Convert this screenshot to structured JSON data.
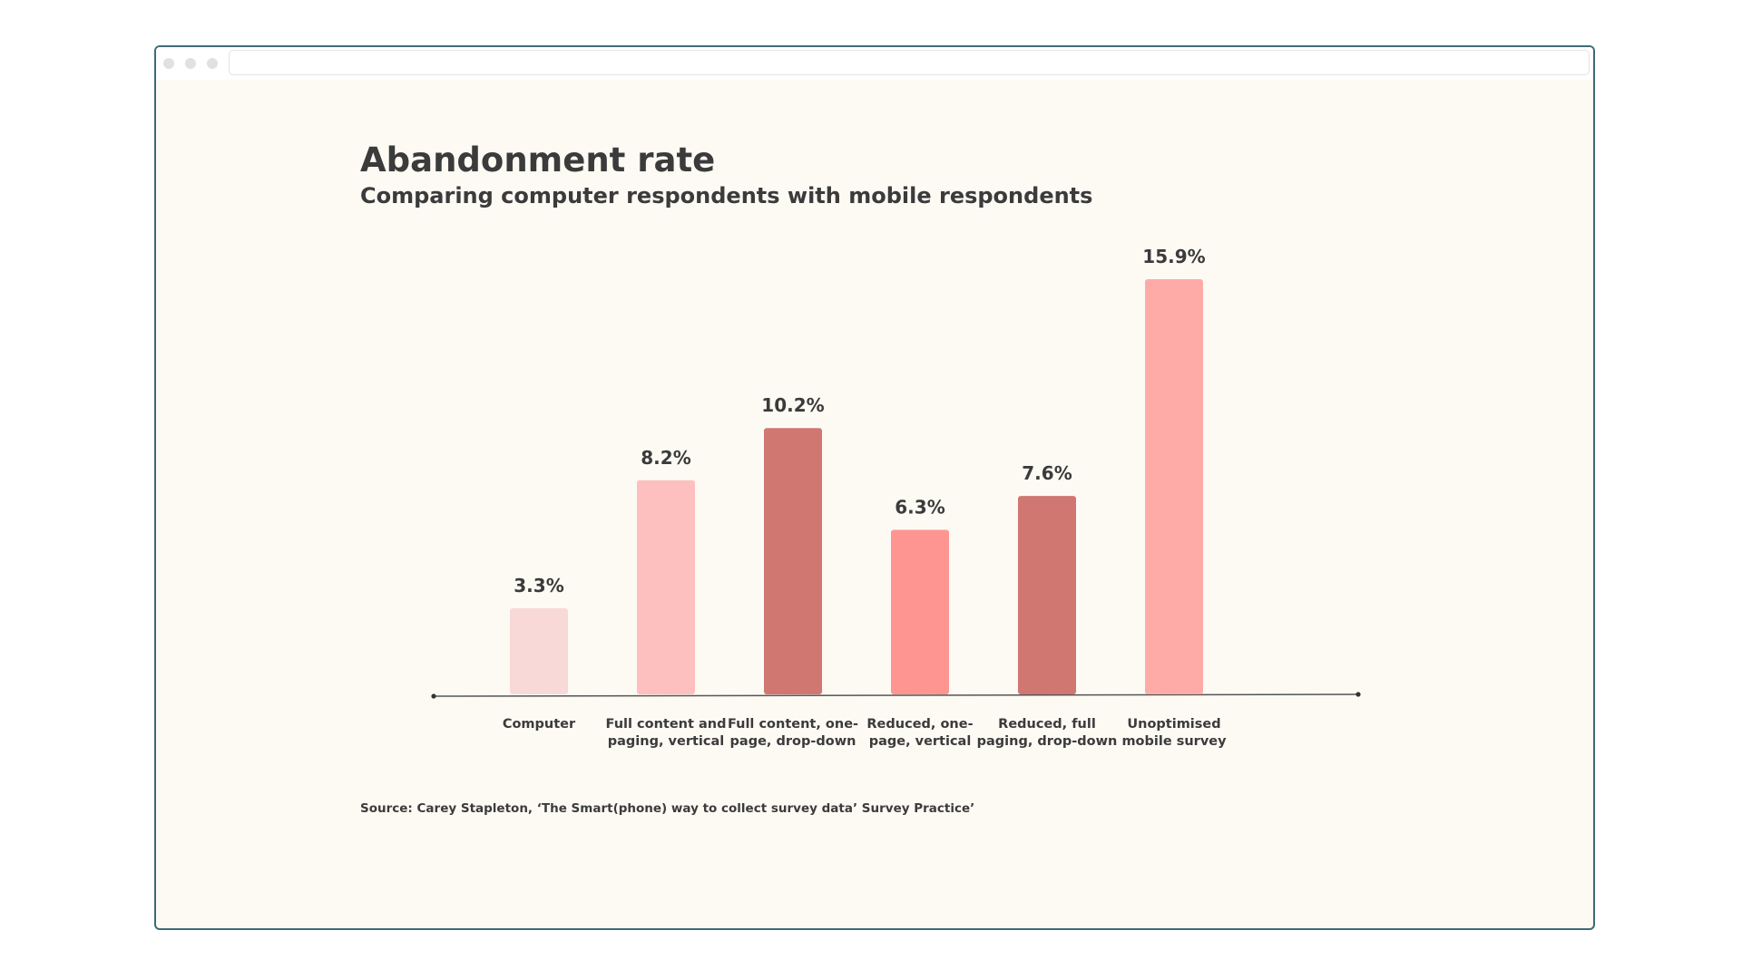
{
  "chart_data": {
    "type": "bar",
    "title": "Abandonment rate",
    "subtitle": "Comparing computer respondents with mobile respondents",
    "categories": [
      [
        "Computer"
      ],
      [
        "Full content and",
        "paging, vertical"
      ],
      [
        "Full content, one-",
        "page, drop-down"
      ],
      [
        "Reduced, one-",
        "page, vertical"
      ],
      [
        "Reduced, full",
        "paging, drop-down"
      ],
      [
        "Unoptimised",
        "mobile survey"
      ]
    ],
    "values": [
      3.3,
      8.2,
      10.2,
      6.3,
      7.6,
      15.9
    ],
    "value_labels": [
      "3.3%",
      "8.2%",
      "10.2%",
      "6.3%",
      "7.6%",
      "15.9%"
    ],
    "colors": [
      "#f9d9d7",
      "#fdc0bf",
      "#d07772",
      "#fe9591",
      "#d07772",
      "#feaba7"
    ],
    "ylim": [
      0,
      15.9
    ],
    "grid": false,
    "source": "Source: Carey Stapleton, ‘The Smart(phone) way to collect survey data’ Survey Practice’"
  }
}
